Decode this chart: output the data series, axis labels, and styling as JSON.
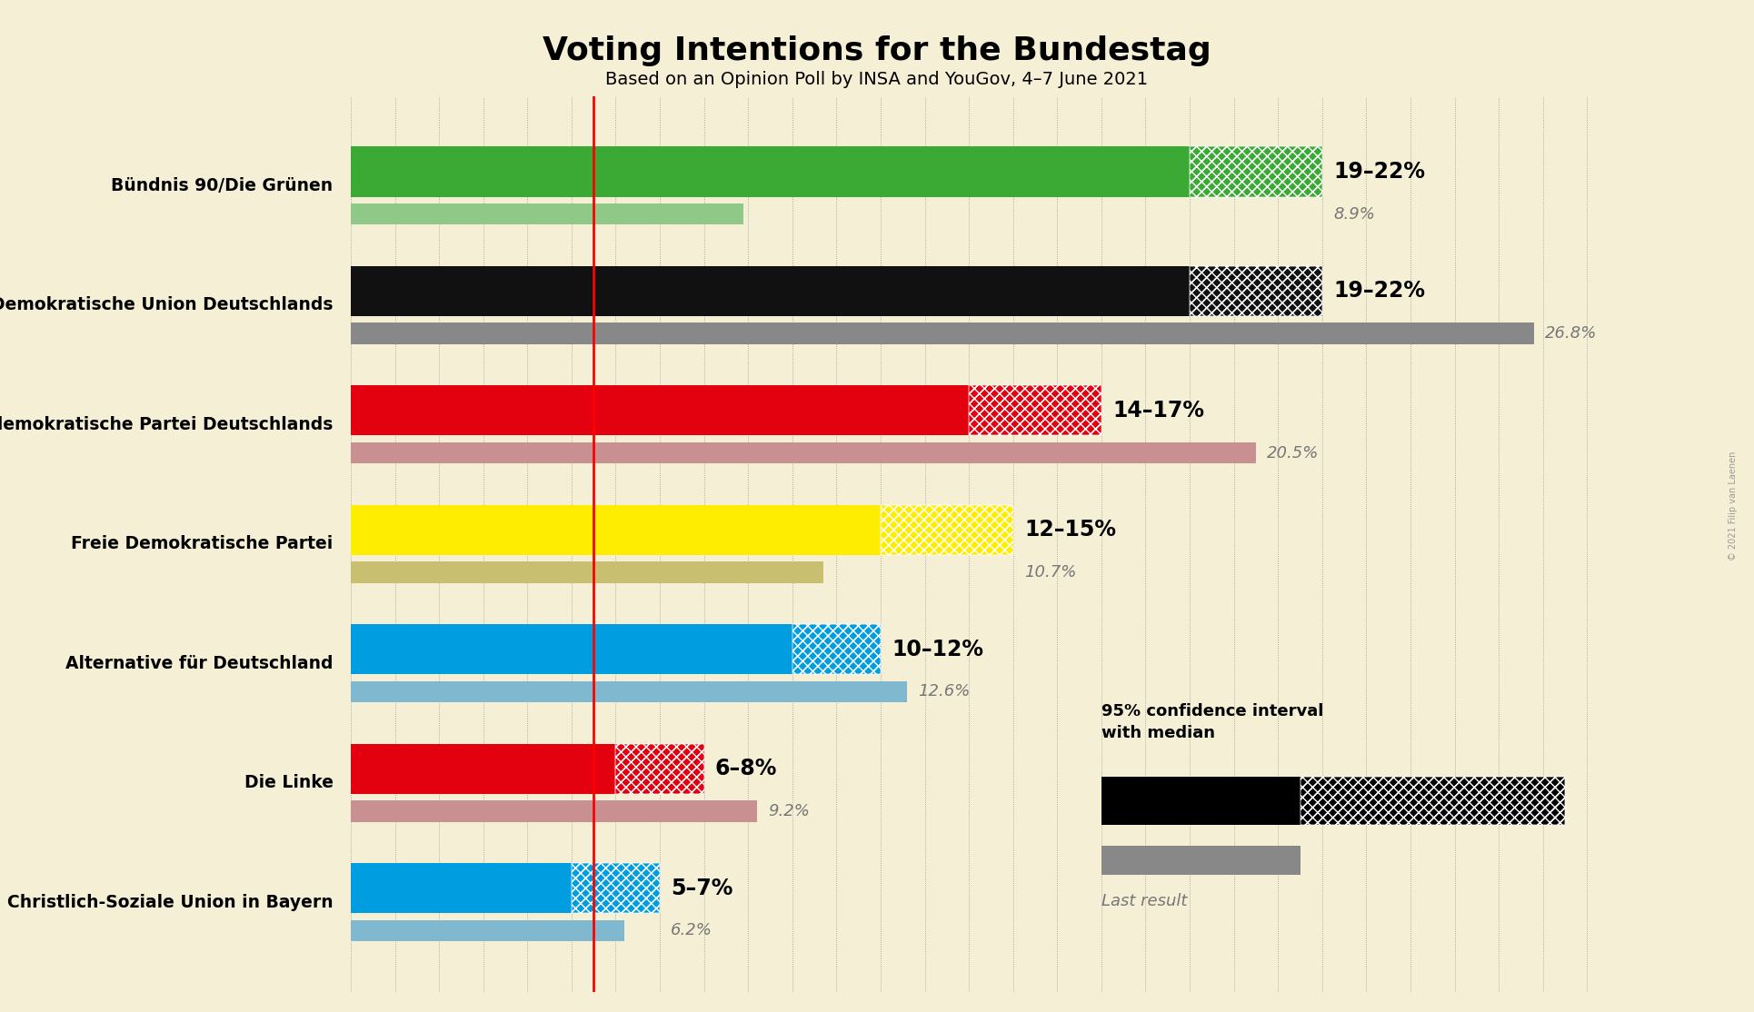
{
  "title": "Voting Intentions for the Bundestag",
  "subtitle": "Based on an Opinion Poll by INSA and YouGov, 4–7 June 2021",
  "copyright": "© 2021 Filip van Laenen",
  "background_color": "#f5f0d5",
  "parties": [
    {
      "name": "Bündnis 90/Die Grünen",
      "ci_low": 19.0,
      "median": 20.5,
      "ci_high": 22.0,
      "last_result": 8.9,
      "color": "#3aaa35",
      "last_color": "#90c888",
      "label": "19–22%",
      "last_label": "8.9%"
    },
    {
      "name": "Christlich Demokratische Union Deutschlands",
      "ci_low": 19.0,
      "median": 20.5,
      "ci_high": 22.0,
      "last_result": 26.8,
      "color": "#111111",
      "last_color": "#888888",
      "label": "19–22%",
      "last_label": "26.8%"
    },
    {
      "name": "Sozialdemokratische Partei Deutschlands",
      "ci_low": 14.0,
      "median": 15.5,
      "ci_high": 17.0,
      "last_result": 20.5,
      "color": "#e3000f",
      "last_color": "#c89090",
      "label": "14–17%",
      "last_label": "20.5%"
    },
    {
      "name": "Freie Demokratische Partei",
      "ci_low": 12.0,
      "median": 13.5,
      "ci_high": 15.0,
      "last_result": 10.7,
      "color": "#ffed00",
      "last_color": "#c8c070",
      "label": "12–15%",
      "last_label": "10.7%"
    },
    {
      "name": "Alternative für Deutschland",
      "ci_low": 10.0,
      "median": 11.0,
      "ci_high": 12.0,
      "last_result": 12.6,
      "color": "#009ee0",
      "last_color": "#80b8d0",
      "label": "10–12%",
      "last_label": "12.6%"
    },
    {
      "name": "Die Linke",
      "ci_low": 6.0,
      "median": 7.0,
      "ci_high": 8.0,
      "last_result": 9.2,
      "color": "#e3000f",
      "last_color": "#c89090",
      "label": "6–8%",
      "last_label": "9.2%"
    },
    {
      "name": "Christlich-Soziale Union in Bayern",
      "ci_low": 5.0,
      "median": 6.0,
      "ci_high": 7.0,
      "last_result": 6.2,
      "color": "#009ee0",
      "last_color": "#80b8d0",
      "label": "5–7%",
      "last_label": "6.2%"
    }
  ],
  "xlim_max": 29,
  "bar_height": 0.42,
  "last_bar_height": 0.18,
  "bar_gap": 0.055,
  "red_line_x": 5.5,
  "title_fontsize": 26,
  "subtitle_fontsize": 14,
  "party_fontsize": 13.5,
  "label_fontsize": 17,
  "last_label_fontsize": 13,
  "legend_fontsize": 13
}
